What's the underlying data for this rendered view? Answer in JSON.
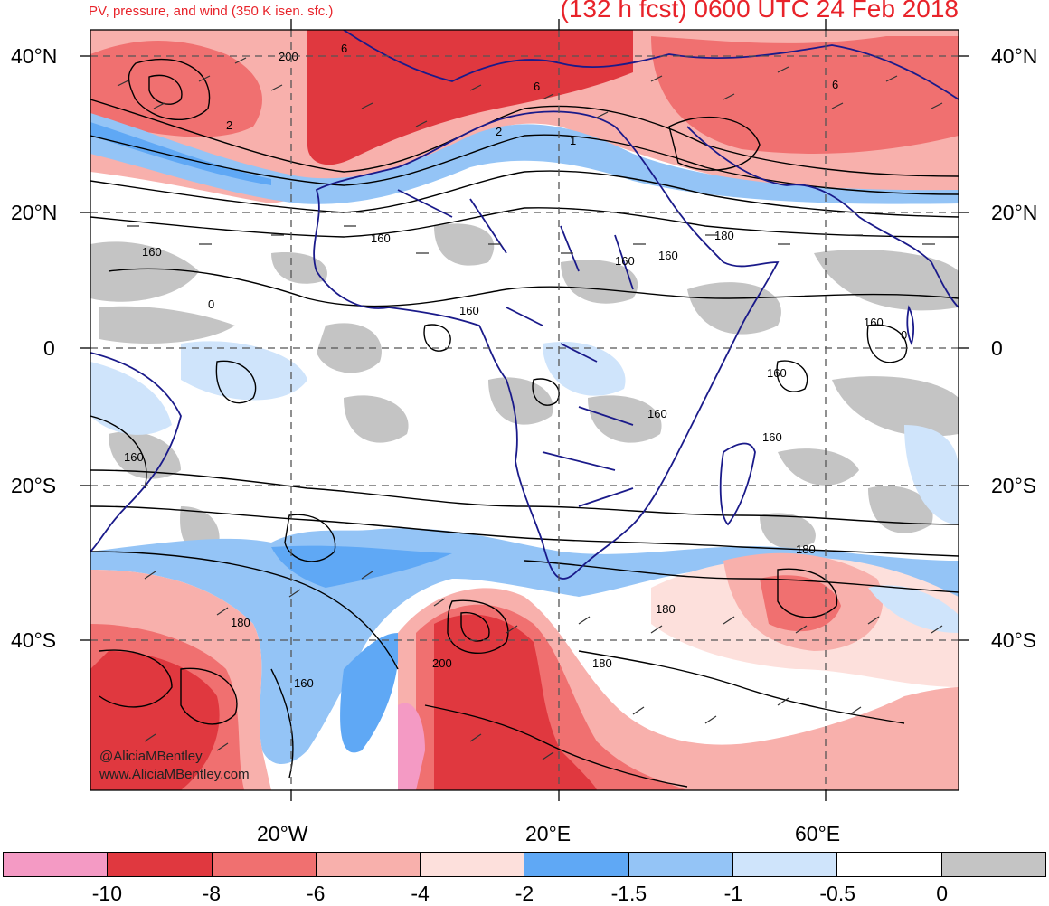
{
  "header": {
    "subtitle": "PV, pressure, and wind (350 K isen. sfc.)",
    "title": "(132 h fcst) 0600 UTC 24 Feb 2018"
  },
  "axes": {
    "lat_left": [
      "40°N",
      "20°N",
      "0",
      "20°S",
      "40°S"
    ],
    "lat_right": [
      "40°N",
      "20°N",
      "0",
      "20°S",
      "40°S"
    ],
    "lon": [
      "20°W",
      "20°E",
      "60°E"
    ]
  },
  "contour_labels": [
    "200",
    "6",
    "6",
    "2",
    "2",
    "1",
    "6",
    "160",
    "160",
    "160",
    "160",
    "180",
    "0",
    "160",
    "160",
    "160",
    "0",
    "160",
    "160",
    "160",
    "180",
    "180",
    "180",
    "180",
    "200",
    "160"
  ],
  "credits": {
    "handle": "@AliciaMBentley",
    "site": "www.AliciaMBentley.com"
  },
  "colorbar": {
    "colors": [
      "#f49ac4",
      "#e0383f",
      "#f07070",
      "#f8b0ac",
      "#fde0dc",
      "#5fa8f5",
      "#94c4f6",
      "#cfe4fb",
      "#ffffff",
      "#c4c4c4"
    ],
    "labels": [
      "-10",
      "-8",
      "-6",
      "-4",
      "-2",
      "-1.5",
      "-1",
      "-0.5",
      "0"
    ]
  },
  "legend_colors": {
    "pink": "#f49ac4",
    "dark_red": "#e0383f",
    "red": "#f07070",
    "light_red": "#f8b0ac",
    "pale_red": "#fde0dc",
    "blue": "#5fa8f5",
    "mid_blue": "#94c4f6",
    "light_blue": "#cfe4fb",
    "white": "#ffffff",
    "grey": "#c4c4c4",
    "coast": "#1a1a8a",
    "title_red": "#e8232a"
  }
}
